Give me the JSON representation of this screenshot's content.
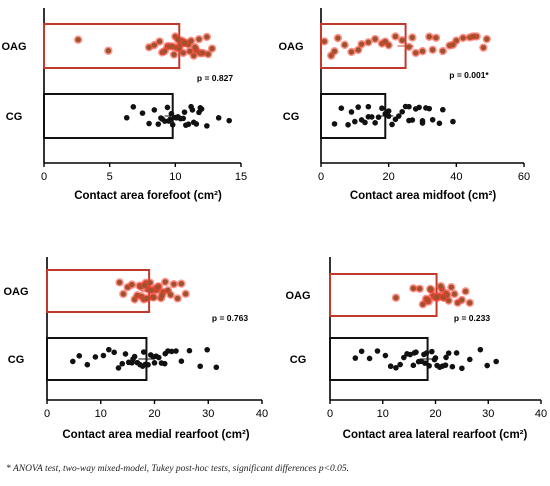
{
  "colors": {
    "oag": "#c0392b",
    "oag_dot": "#a0522d",
    "oag_highlight": "#ff3b30",
    "cg": "#111111"
  },
  "footnote": "* ANOVA test, two-way mixed-model, Tukey post-hoc tests, significant differences p<0.05.",
  "chart_data": [
    {
      "type": "bar",
      "orientation": "horizontal",
      "xlabel": "Contact area forefoot (cm²)",
      "xlim": [
        0,
        15
      ],
      "xticks": [
        0,
        5,
        10,
        15
      ],
      "categories": [
        "OAG",
        "CG"
      ],
      "p_value": "p = 0.827",
      "series": [
        {
          "name": "OAG",
          "mean": 10.3,
          "points": [
            2.6,
            4.9,
            8.0,
            8.4,
            8.8,
            9.0,
            9.2,
            9.4,
            9.6,
            9.8,
            10.0,
            10.1,
            10.3,
            10.4,
            10.6,
            10.8,
            11.0,
            11.2,
            11.4,
            11.6,
            11.9,
            12.1,
            12.4,
            12.8,
            9.9,
            10.5,
            11.1,
            11.8,
            12.5,
            10.2,
            10.7,
            11.5
          ]
        },
        {
          "name": "CG",
          "mean": 9.8,
          "points": [
            6.3,
            6.8,
            7.5,
            8.0,
            8.4,
            8.7,
            9.0,
            9.2,
            9.4,
            9.6,
            9.8,
            10.0,
            10.2,
            10.4,
            10.6,
            10.8,
            11.0,
            11.2,
            11.4,
            11.6,
            11.8,
            12.0,
            12.4,
            13.3,
            14.1,
            8.9,
            9.5,
            10.1,
            10.7,
            11.3,
            11.9,
            9.7
          ]
        }
      ]
    },
    {
      "type": "bar",
      "orientation": "horizontal",
      "xlabel": "Contact area midfoot (cm²)",
      "xlim": [
        0,
        60
      ],
      "xticks": [
        0,
        20,
        40,
        60
      ],
      "categories": [
        "OAG",
        "CG"
      ],
      "p_value": "p = 0.001*",
      "series": [
        {
          "name": "OAG",
          "mean": 25,
          "points": [
            1,
            3,
            5,
            7,
            9,
            12,
            14,
            16,
            18,
            20,
            22,
            24,
            26,
            28,
            30,
            32,
            34,
            36,
            38,
            40,
            42,
            44,
            46,
            48,
            49,
            4,
            11,
            19,
            27,
            33,
            39,
            45
          ]
        },
        {
          "name": "CG",
          "mean": 19,
          "points": [
            4,
            6,
            8,
            9,
            11,
            12,
            13,
            14,
            15,
            16,
            17,
            18,
            19,
            20,
            21,
            22,
            23,
            24,
            25,
            26,
            27,
            28,
            29,
            30,
            31,
            32,
            33,
            35,
            36,
            39,
            10,
            14,
            20,
            26,
            30
          ]
        }
      ]
    },
    {
      "type": "bar",
      "orientation": "horizontal",
      "xlabel": "Contact area medial rearfoot (cm²)",
      "xlim": [
        0,
        40
      ],
      "xticks": [
        0,
        10,
        20,
        30,
        40
      ],
      "categories": [
        "OAG",
        "CG"
      ],
      "p_value": "p = 0.763",
      "series": [
        {
          "name": "OAG",
          "mean": 19,
          "points": [
            13.5,
            14.2,
            15.0,
            15.8,
            16.3,
            16.8,
            17.2,
            17.6,
            18.0,
            18.4,
            18.8,
            19.2,
            19.6,
            20.0,
            20.4,
            20.8,
            21.2,
            21.6,
            22.0,
            22.5,
            23.0,
            23.6,
            24.3,
            25.0,
            25.8,
            17.5,
            18.6,
            19.4,
            20.6,
            21.4,
            19.9,
            18.2
          ]
        },
        {
          "name": "CG",
          "mean": 18.5,
          "points": [
            4.8,
            6.0,
            7.5,
            9.0,
            10.5,
            11.5,
            12.5,
            13.3,
            14.0,
            14.6,
            15.2,
            15.8,
            16.3,
            16.8,
            17.3,
            17.8,
            18.3,
            18.8,
            19.3,
            19.8,
            20.3,
            20.8,
            21.3,
            21.9,
            22.5,
            23.2,
            24.0,
            25.0,
            26.5,
            28.5,
            29.8,
            31.5,
            16.0,
            18.0,
            20.0,
            22.0
          ]
        }
      ]
    },
    {
      "type": "bar",
      "orientation": "horizontal",
      "xlabel": "Contact area lateral rearfoot (cm²)",
      "xlim": [
        0,
        40
      ],
      "xticks": [
        0,
        10,
        20,
        30,
        40
      ],
      "categories": [
        "OAG",
        "CG"
      ],
      "p_value": "p = 0.233",
      "series": [
        {
          "name": "OAG",
          "mean": 20.2,
          "points": [
            12.5,
            15.8,
            17.0,
            17.6,
            18.2,
            18.7,
            19.2,
            19.6,
            20.0,
            20.4,
            20.8,
            21.2,
            21.6,
            22.0,
            22.5,
            23.0,
            23.6,
            24.2,
            25.0,
            25.7,
            26.5,
            19.0,
            20.2,
            21.0,
            22.2,
            18.5,
            21.5
          ]
        },
        {
          "name": "CG",
          "mean": 18.5,
          "points": [
            4.8,
            6.0,
            7.5,
            9.0,
            10.5,
            11.5,
            12.5,
            13.3,
            14.0,
            14.6,
            15.2,
            15.8,
            16.3,
            16.8,
            17.3,
            17.8,
            18.3,
            18.8,
            19.3,
            19.8,
            20.3,
            20.8,
            21.3,
            21.9,
            22.5,
            23.2,
            24.0,
            25.0,
            26.5,
            28.5,
            29.8,
            31.5,
            16.0,
            18.0,
            20.0,
            22.0
          ]
        }
      ]
    }
  ]
}
